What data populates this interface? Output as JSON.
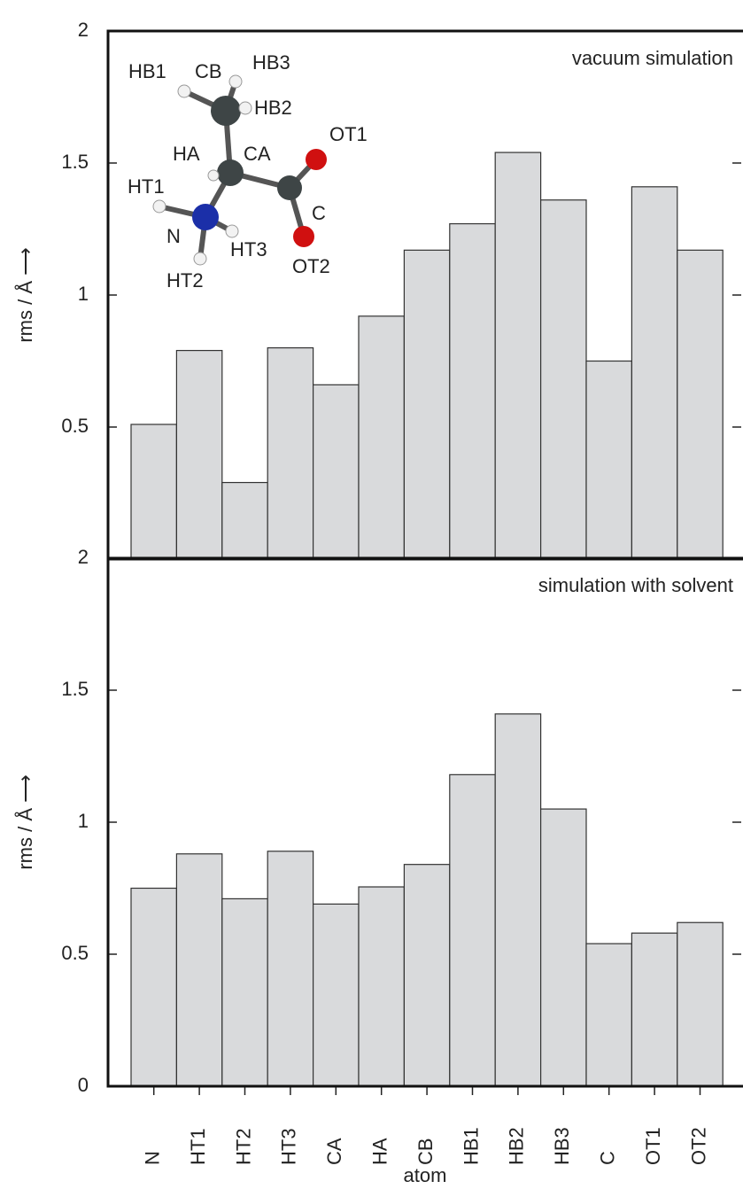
{
  "chart_data": [
    {
      "type": "bar",
      "title": "vacuum simulation",
      "y_label": "rms / Å ⟶",
      "values": [
        0.51,
        0.79,
        0.29,
        0.8,
        0.66,
        0.92,
        1.17,
        1.27,
        1.54,
        1.36,
        0.75,
        1.41,
        1.17
      ],
      "color": "#d9dadc",
      "ylim": [
        0,
        2
      ],
      "yticks": [
        0.5,
        1,
        1.5,
        2
      ],
      "annotations": [
        "HB1",
        "CB",
        "HB3",
        "HB2",
        "HA",
        "CA",
        "OT1",
        "HT1",
        "C",
        "N",
        "HT3",
        "OT2",
        "HT2"
      ]
    },
    {
      "type": "bar",
      "title": "simulation with solvent",
      "y_label": "rms / Å ⟶",
      "x_label": "atom",
      "categories": [
        "N",
        "HT1",
        "HT2",
        "HT3",
        "CA",
        "HA",
        "CB",
        "HB1",
        "HB2",
        "HB3",
        "C",
        "OT1",
        "OT2"
      ],
      "values": [
        0.75,
        0.88,
        0.71,
        0.89,
        0.69,
        0.755,
        0.84,
        1.18,
        1.41,
        1.05,
        0.54,
        0.58,
        0.62
      ],
      "color": "#d9dadc",
      "ylim": [
        0,
        2
      ],
      "yticks": [
        0,
        0.5,
        1,
        1.5,
        2
      ]
    }
  ]
}
